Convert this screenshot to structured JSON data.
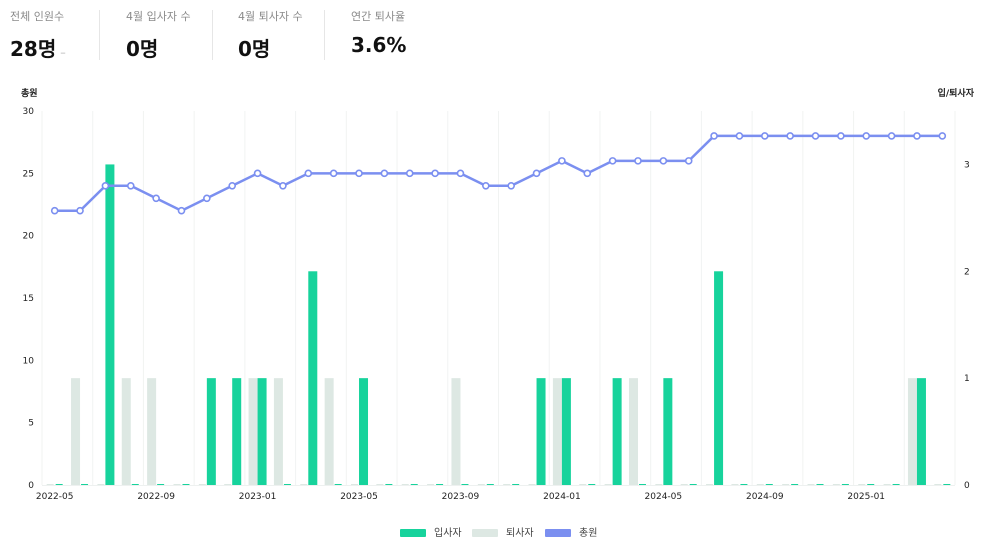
{
  "kpis": [
    {
      "label": "전체 인원수",
      "value": "28명",
      "trend": "–"
    },
    {
      "label": "4월 입사자 수",
      "value": "0명"
    },
    {
      "label": "4월 퇴사자 수",
      "value": "0명"
    },
    {
      "label": "연간 퇴사율",
      "value": "3.6%"
    }
  ],
  "colors": {
    "hire": "#17d39c",
    "leave": "#dde8e3",
    "total": "#7b8ff0",
    "grid": "#f1f3f2",
    "axis": "#222222"
  },
  "chart_data": {
    "type": "bar+line",
    "left_axis_title": "총원",
    "right_axis_title": "입/퇴사자",
    "ylim_left": [
      0,
      30
    ],
    "yticks_left": [
      0,
      5,
      10,
      15,
      20,
      25,
      30
    ],
    "ylim_right": [
      0,
      3.5
    ],
    "yticks_right": [
      0,
      1,
      2,
      3
    ],
    "categories": [
      "2022-05",
      "2022-06",
      "2022-07",
      "2022-08",
      "2022-09",
      "2022-10",
      "2022-11",
      "2022-12",
      "2023-01",
      "2023-02",
      "2023-03",
      "2023-04",
      "2023-05",
      "2023-06",
      "2023-07",
      "2023-08",
      "2023-09",
      "2023-10",
      "2023-11",
      "2023-12",
      "2024-01",
      "2024-02",
      "2024-03",
      "2024-04",
      "2024-05",
      "2024-06",
      "2024-07",
      "2024-08",
      "2024-09",
      "2024-10",
      "2024-11",
      "2024-12",
      "2025-01",
      "2025-02",
      "2025-03",
      "2025-04"
    ],
    "xtick_labels": [
      "2022-05",
      "2022-09",
      "2023-01",
      "2023-05",
      "2023-09",
      "2024-01",
      "2024-05",
      "2024-09",
      "2025-01"
    ],
    "series": [
      {
        "name": "입사자",
        "type": "bar",
        "axis": "right",
        "values": [
          0,
          0,
          3,
          0,
          0,
          0,
          1,
          1,
          1,
          0,
          2,
          0,
          1,
          0,
          0,
          0,
          0,
          0,
          0,
          1,
          1,
          0,
          1,
          0,
          1,
          0,
          2,
          0,
          0,
          0,
          0,
          0,
          0,
          0,
          1,
          0
        ]
      },
      {
        "name": "퇴사자",
        "type": "bar",
        "axis": "right",
        "values": [
          0,
          1,
          0,
          1,
          1,
          0,
          0,
          0,
          1,
          1,
          0,
          1,
          0,
          0,
          0,
          0,
          1,
          0,
          0,
          0,
          1,
          0,
          0,
          1,
          0,
          0,
          0,
          0,
          0,
          0,
          0,
          0,
          0,
          0,
          1,
          0
        ]
      },
      {
        "name": "총원",
        "type": "line",
        "axis": "left",
        "values": [
          22,
          22,
          24,
          24,
          23,
          22,
          23,
          24,
          25,
          24,
          25,
          25,
          25,
          25,
          25,
          25,
          25,
          24,
          24,
          25,
          26,
          25,
          26,
          26,
          26,
          26,
          28,
          28,
          28,
          28,
          28,
          28,
          28,
          28,
          28,
          28
        ]
      }
    ]
  },
  "legend": [
    {
      "label": "입사자"
    },
    {
      "label": "퇴사자"
    },
    {
      "label": "총원"
    }
  ]
}
